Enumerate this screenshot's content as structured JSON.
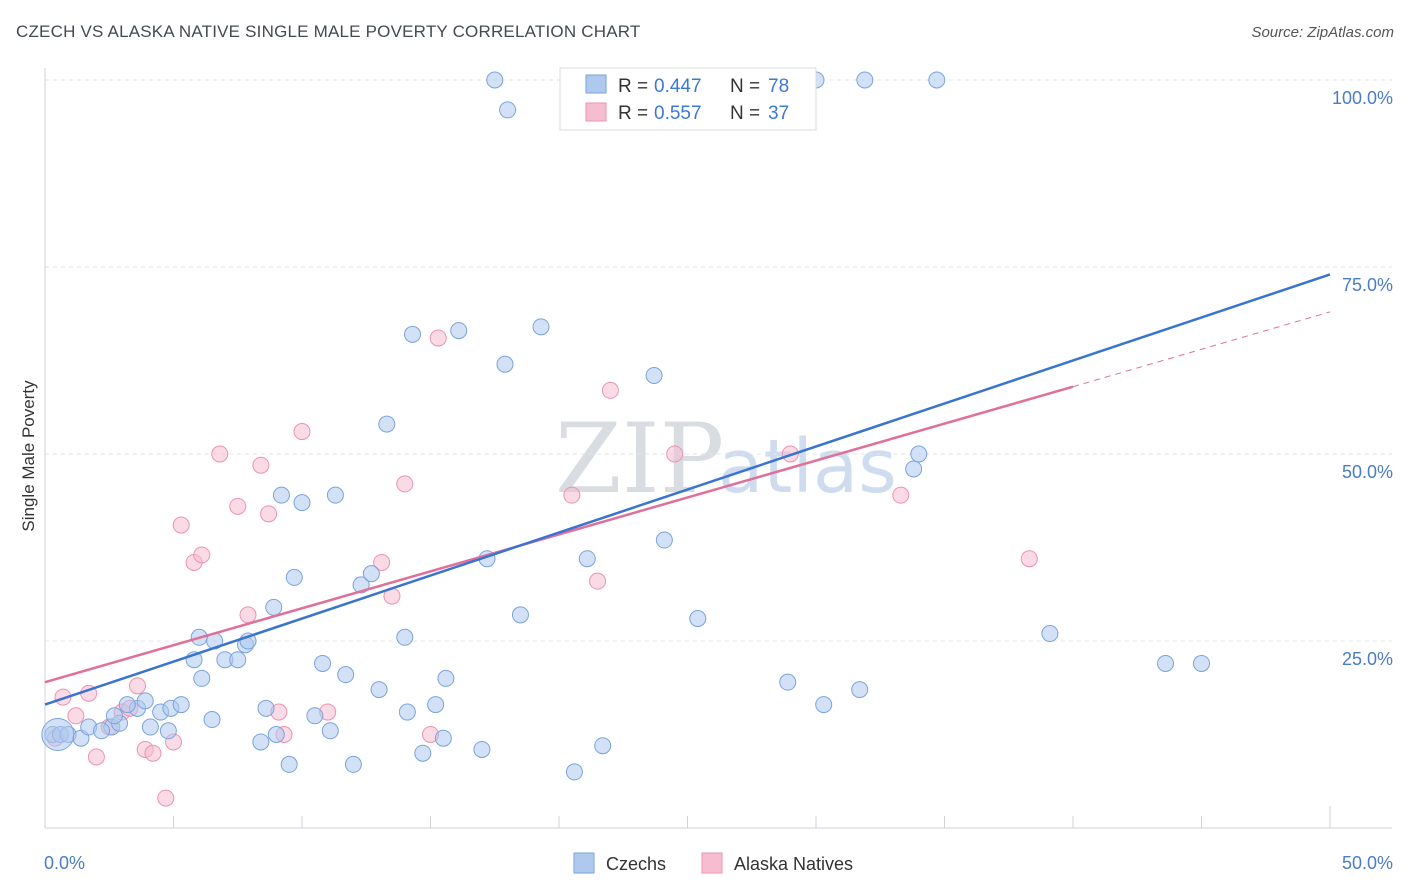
{
  "header": {
    "title": "CZECH VS ALASKA NATIVE SINGLE MALE POVERTY CORRELATION CHART",
    "source": "Source: ZipAtlas.com"
  },
  "legend_top": {
    "items": [
      {
        "r_label": "R =",
        "r_value": "0.447",
        "n_label": "N =",
        "n_value": "78"
      },
      {
        "r_label": "R =",
        "r_value": "0.557",
        "n_label": "N =",
        "n_value": "37"
      }
    ]
  },
  "watermark": {
    "zip": "ZIP",
    "atlas": "atlas"
  },
  "colors": {
    "czech_fill": "#aec8ee",
    "czech_stroke": "#7aa3dc",
    "czech_line": "#3a74d0",
    "native_fill": "#f6bcd0",
    "native_stroke": "#ec93b2",
    "native_line": "#e0709a",
    "grid": "#e3e6ea",
    "axis_text": "#4a7cc7"
  },
  "chart_data": {
    "type": "scatter",
    "title": "CZECH VS ALASKA NATIVE SINGLE MALE POVERTY CORRELATION CHART",
    "xlabel": "",
    "ylabel": "Single Male Poverty",
    "xlim": [
      0,
      50
    ],
    "ylim": [
      0,
      100
    ],
    "x_tick_labels": [
      "0.0%",
      "50.0%"
    ],
    "y_tick_labels": [
      "100.0%",
      "75.0%",
      "50.0%",
      "25.0%"
    ],
    "y_ticks": [
      100,
      75,
      50,
      25
    ],
    "grid": true,
    "legend_position": "bottom-center",
    "series": [
      {
        "name": "Czechs",
        "r": 0.447,
        "n": 78,
        "trend": {
          "x": [
            0,
            50
          ],
          "y": [
            16.5,
            74
          ]
        },
        "points": [
          [
            0.3,
            12.5
          ],
          [
            0.6,
            12.5
          ],
          [
            0.9,
            12.5
          ],
          [
            1.4,
            12.0
          ],
          [
            1.7,
            13.5
          ],
          [
            2.6,
            13.5
          ],
          [
            2.9,
            14.0
          ],
          [
            2.7,
            15.0
          ],
          [
            3.6,
            16.0
          ],
          [
            3.9,
            17.0
          ],
          [
            4.1,
            13.5
          ],
          [
            4.5,
            15.5
          ],
          [
            4.9,
            16.0
          ],
          [
            5.3,
            16.5
          ],
          [
            5.8,
            22.5
          ],
          [
            6.1,
            20.0
          ],
          [
            6.0,
            25.5
          ],
          [
            6.6,
            25.0
          ],
          [
            7.0,
            22.5
          ],
          [
            7.5,
            22.5
          ],
          [
            7.8,
            24.5
          ],
          [
            7.9,
            25.0
          ],
          [
            8.4,
            11.5
          ],
          [
            8.6,
            16.0
          ],
          [
            8.9,
            29.5
          ],
          [
            9.2,
            44.5
          ],
          [
            9.5,
            8.5
          ],
          [
            9.7,
            33.5
          ],
          [
            10.0,
            43.5
          ],
          [
            10.5,
            15.0
          ],
          [
            10.8,
            22.0
          ],
          [
            11.1,
            13.0
          ],
          [
            11.3,
            44.5
          ],
          [
            11.7,
            20.5
          ],
          [
            12.0,
            8.5
          ],
          [
            12.3,
            32.5
          ],
          [
            12.7,
            34.0
          ],
          [
            13.0,
            18.5
          ],
          [
            13.3,
            54.0
          ],
          [
            14.0,
            25.5
          ],
          [
            14.1,
            15.5
          ],
          [
            14.3,
            66.0
          ],
          [
            14.7,
            10.0
          ],
          [
            15.2,
            16.5
          ],
          [
            15.6,
            20.0
          ],
          [
            16.1,
            66.5
          ],
          [
            17.0,
            10.5
          ],
          [
            17.2,
            36.0
          ],
          [
            17.9,
            62.0
          ],
          [
            18.5,
            28.5
          ],
          [
            19.3,
            67.0
          ],
          [
            20.6,
            7.5
          ],
          [
            21.1,
            36.0
          ],
          [
            21.7,
            11.0
          ],
          [
            23.7,
            60.5
          ],
          [
            24.1,
            38.5
          ],
          [
            25.4,
            28.0
          ],
          [
            28.9,
            19.5
          ],
          [
            30.3,
            16.5
          ],
          [
            31.7,
            18.5
          ],
          [
            33.8,
            48.0
          ],
          [
            34.0,
            50.0
          ],
          [
            39.1,
            26.0
          ],
          [
            43.6,
            22.0
          ],
          [
            45.0,
            22.0
          ],
          [
            17.5,
            100.0
          ],
          [
            18.0,
            96.0
          ],
          [
            21.0,
            100.0
          ],
          [
            23.8,
            100.0
          ],
          [
            30.0,
            100.0
          ],
          [
            31.9,
            100.0
          ],
          [
            34.7,
            100.0
          ],
          [
            4.8,
            13.0
          ],
          [
            6.5,
            14.5
          ],
          [
            9.0,
            12.5
          ],
          [
            15.5,
            12.0
          ],
          [
            3.2,
            16.5
          ],
          [
            2.2,
            13.0
          ]
        ]
      },
      {
        "name": "Alaska Natives",
        "r": 0.557,
        "n": 37,
        "trend": {
          "x": [
            0,
            40
          ],
          "y": [
            19.5,
            59
          ]
        },
        "trend_dashed": {
          "x": [
            40,
            50
          ],
          "y": [
            59,
            69
          ]
        },
        "points": [
          [
            0.4,
            12.0
          ],
          [
            0.7,
            17.5
          ],
          [
            1.2,
            15.0
          ],
          [
            1.7,
            18.0
          ],
          [
            2.0,
            9.5
          ],
          [
            2.5,
            13.5
          ],
          [
            3.0,
            15.5
          ],
          [
            3.3,
            16.0
          ],
          [
            3.6,
            19.0
          ],
          [
            3.9,
            10.5
          ],
          [
            4.2,
            10.0
          ],
          [
            4.7,
            4.0
          ],
          [
            5.0,
            11.5
          ],
          [
            5.3,
            40.5
          ],
          [
            5.8,
            35.5
          ],
          [
            6.1,
            36.5
          ],
          [
            6.8,
            50.0
          ],
          [
            7.5,
            43.0
          ],
          [
            7.9,
            28.5
          ],
          [
            8.4,
            48.5
          ],
          [
            8.7,
            42.0
          ],
          [
            9.1,
            15.5
          ],
          [
            9.3,
            12.5
          ],
          [
            10.0,
            53.0
          ],
          [
            11.0,
            15.5
          ],
          [
            13.1,
            35.5
          ],
          [
            13.5,
            31.0
          ],
          [
            14.0,
            46.0
          ],
          [
            15.0,
            12.5
          ],
          [
            15.3,
            65.5
          ],
          [
            20.5,
            44.5
          ],
          [
            21.5,
            33.0
          ],
          [
            22.0,
            58.5
          ],
          [
            24.5,
            50.0
          ],
          [
            29.0,
            50.0
          ],
          [
            33.3,
            44.5
          ],
          [
            38.3,
            36.0
          ]
        ]
      }
    ]
  }
}
